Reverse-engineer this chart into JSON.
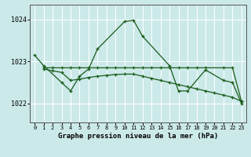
{
  "title": "Graphe pression niveau de la mer (hPa)",
  "bg_color": "#cce9e9",
  "grid_color": "#ffffff",
  "line_color": "#1a5c1a",
  "ylabel_ticks": [
    1022,
    1023,
    1024
  ],
  "xlim": [
    -0.5,
    23.5
  ],
  "ylim": [
    1021.55,
    1024.35
  ],
  "series_main": {
    "x": [
      0,
      1,
      3,
      4,
      5,
      6,
      7,
      10,
      11,
      12,
      15,
      16,
      17,
      19,
      21,
      22,
      23
    ],
    "y": [
      1023.15,
      1022.9,
      1022.5,
      1022.3,
      1022.65,
      1022.82,
      1023.3,
      1023.95,
      1023.98,
      1023.6,
      1022.9,
      1022.3,
      1022.3,
      1022.8,
      1022.55,
      1022.5,
      1022.0
    ]
  },
  "series_flat1": {
    "x": [
      1,
      2,
      3,
      4,
      5,
      6,
      7,
      8,
      9,
      10,
      11,
      12,
      13,
      14,
      15,
      16,
      17,
      18,
      19,
      21,
      22,
      23
    ],
    "y": [
      1022.85,
      1022.85,
      1022.85,
      1022.85,
      1022.85,
      1022.85,
      1022.85,
      1022.85,
      1022.85,
      1022.85,
      1022.85,
      1022.85,
      1022.85,
      1022.85,
      1022.85,
      1022.85,
      1022.85,
      1022.85,
      1022.85,
      1022.85,
      1022.85,
      1022.05
    ]
  },
  "series_flat2": {
    "x": [
      1,
      2,
      3,
      4,
      5,
      6,
      7,
      8,
      9,
      10,
      11,
      12,
      13,
      14,
      15,
      16,
      17,
      18,
      19,
      20,
      21,
      22,
      23
    ],
    "y": [
      1022.82,
      1022.78,
      1022.74,
      1022.55,
      1022.58,
      1022.62,
      1022.65,
      1022.67,
      1022.69,
      1022.7,
      1022.7,
      1022.65,
      1022.6,
      1022.55,
      1022.5,
      1022.45,
      1022.4,
      1022.35,
      1022.3,
      1022.25,
      1022.2,
      1022.15,
      1022.05
    ]
  }
}
